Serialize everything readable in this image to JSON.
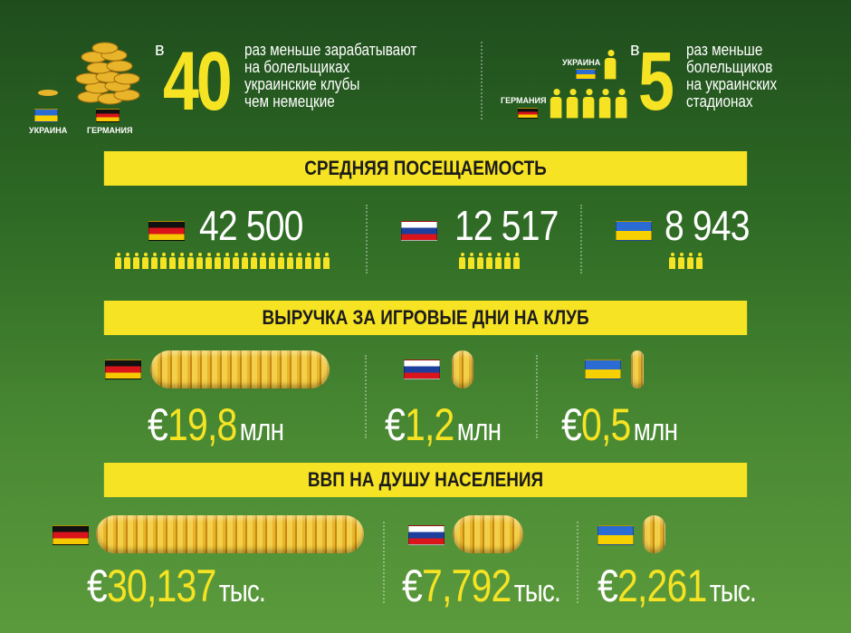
{
  "top_left": {
    "prefix": "в",
    "number": "40",
    "text": "раз меньше зарабатывают\nна болельщиках\nукраинские клубы\nчем немецкие",
    "label_ukraine": "УКРАИНА",
    "label_germany": "ГЕРМАНИЯ"
  },
  "top_right": {
    "prefix": "в",
    "number": "5",
    "text": "раз меньше\nболельщиков\nна украинских\nстадионах",
    "label_ukraine": "УКРАИНА",
    "label_germany": "ГЕРМАНИЯ"
  },
  "attendance": {
    "title": "СРЕДНЯЯ ПОСЕЩАЕМОСТЬ",
    "germany": "42 500",
    "russia": "12 517",
    "ukraine": "8 943"
  },
  "revenue": {
    "title": "ВЫРУЧКА ЗА ИГРОВЫЕ ДНИ НА КЛУБ",
    "germany": {
      "currency": "€",
      "value": "19,8",
      "unit": "млн"
    },
    "russia": {
      "currency": "€",
      "value": "1,2",
      "unit": "млн"
    },
    "ukraine": {
      "currency": "€",
      "value": "0,5",
      "unit": "млн"
    }
  },
  "gdp": {
    "title": "ВВП НА ДУШУ НАСЕЛЕНИЯ",
    "germany": {
      "currency": "€",
      "value": "30,137",
      "unit": "тыс."
    },
    "russia": {
      "currency": "€",
      "value": "7,792",
      "unit": "тыс."
    },
    "ukraine": {
      "currency": "€",
      "value": "2,261",
      "unit": "тыс."
    }
  },
  "colors": {
    "accent": "#f6e323",
    "background": "#2f6b25"
  }
}
